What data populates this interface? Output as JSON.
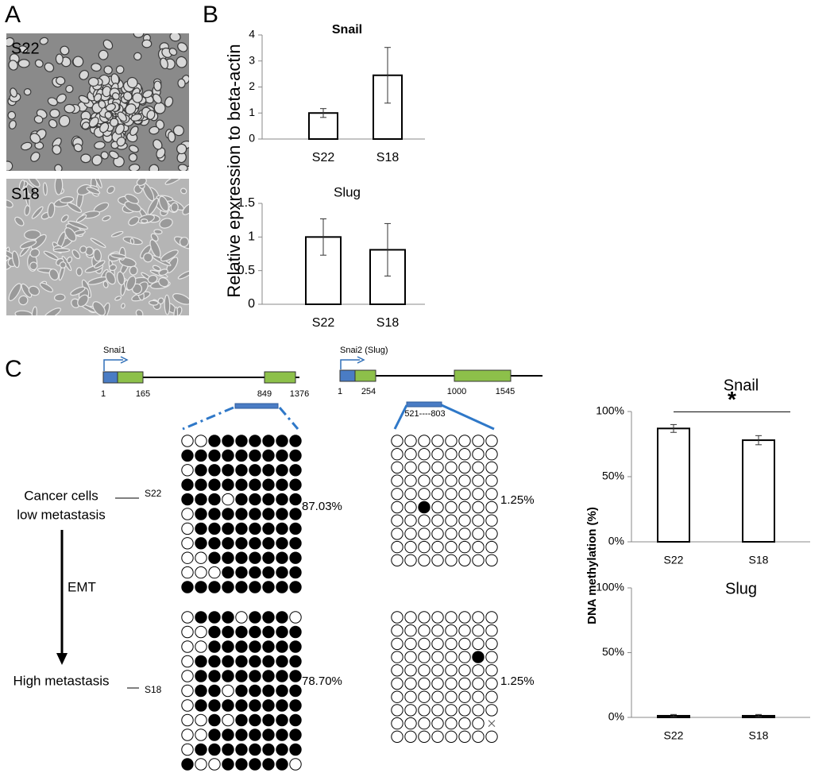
{
  "panels": [
    "A",
    "B",
    "C"
  ],
  "images": [
    {
      "label": "S22"
    },
    {
      "label": "S18"
    }
  ],
  "axis_titles": {
    "b": "Relative epxression to beta-actin",
    "c": "DNA methylation (%)"
  },
  "chart_data": [
    {
      "type": "bar",
      "title": "Snail",
      "categories": [
        "S22",
        "S18"
      ],
      "values": [
        1,
        2.45
      ],
      "errors": [
        0.17,
        1.07
      ],
      "ylim": [
        0,
        4
      ],
      "yticks": [
        0,
        1,
        2,
        3,
        4
      ],
      "color": "#ffffff"
    },
    {
      "type": "bar",
      "title": "Slug",
      "categories": [
        "S22",
        "S18"
      ],
      "values": [
        1,
        0.81
      ],
      "errors": [
        0.27,
        0.39
      ],
      "ylim": [
        0,
        1.5
      ],
      "yticks": [
        0,
        0.5,
        1,
        1.5
      ],
      "color": "#ffffff"
    },
    {
      "type": "bar",
      "title": "Snail",
      "categories": [
        "S22",
        "S18"
      ],
      "values": [
        87,
        78
      ],
      "errors": [
        3,
        3.5
      ],
      "ylim": [
        0,
        100
      ],
      "yticks": [
        {
          "value": 0,
          "label": "0%"
        },
        {
          "value": 50,
          "label": "50%"
        },
        {
          "value": 100,
          "label": "100%"
        }
      ],
      "color": "#ffffff",
      "annotation": "*"
    },
    {
      "type": "bar",
      "title": "Slug",
      "categories": [
        "S22",
        "S18"
      ],
      "values": [
        1.25,
        1.25
      ],
      "errors": [
        1,
        1
      ],
      "ylim": [
        0,
        100
      ],
      "yticks": [
        {
          "value": 0,
          "label": "0%"
        },
        {
          "value": 50,
          "label": "50%"
        },
        {
          "value": 100,
          "label": "100%"
        }
      ],
      "color": "#ffffff"
    }
  ],
  "genes": [
    {
      "name": "Snai1",
      "positions": [
        "1",
        "165",
        "849",
        "1376"
      ]
    },
    {
      "name": "Snai2 (Slug)",
      "positions": [
        "1",
        "254",
        "1000",
        "1545"
      ],
      "region": "521----803"
    }
  ],
  "states": [
    {
      "text": [
        "Cancer cells",
        "low metastasis"
      ],
      "sample": "S22"
    },
    {
      "text": [
        "High metastasis"
      ],
      "sample": "S18"
    }
  ],
  "transition": "EMT",
  "methylation": [
    {
      "percent": "87.03%",
      "rows": [
        "001111111",
        "111111111",
        "011111111",
        "111111111",
        "111011111",
        "011111111",
        "011111111",
        "011111111",
        "001111111",
        "000111111",
        "111111111"
      ]
    },
    {
      "percent": "1.25%",
      "rows": [
        "00000000",
        "00000000",
        "00000000",
        "00000000",
        "00000000",
        "00100000",
        "00000000",
        "00000000",
        "00000000",
        "00000000"
      ]
    },
    {
      "percent": "78.70%",
      "rows": [
        "011101110",
        "001111111",
        "001111111",
        "011111111",
        "011111111",
        "011011111",
        "011111111",
        "001011111",
        "001111111",
        "011111111",
        "100111110"
      ]
    },
    {
      "percent": "1.25%",
      "rows": [
        "00000000",
        "00000000",
        "00000000",
        "00000010",
        "00000000",
        "00000000",
        "00000000",
        "00000000",
        "0000000x",
        "00000000"
      ]
    }
  ]
}
